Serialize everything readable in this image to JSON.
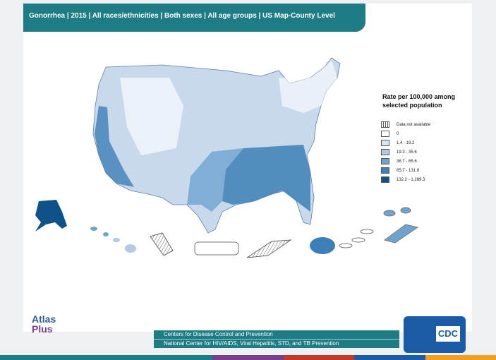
{
  "header": {
    "title": "Gonorrhea | 2015 | All races/ethnicities | Both sexes | All age groups | US Map-County Level"
  },
  "legend": {
    "title": "Rate per 100,000 among selected population",
    "items": [
      {
        "label": "Data not available",
        "color": "hatched"
      },
      {
        "label": "0",
        "color": "#ffffff"
      },
      {
        "label": "1.4 - 19.2",
        "color": "#dbe6f4"
      },
      {
        "label": "19.3 - 35.6",
        "color": "#b3c9e4"
      },
      {
        "label": "36.7 - 65.6",
        "color": "#6fa3cf"
      },
      {
        "label": "65.7 - 131.8",
        "color": "#3d7fb8"
      },
      {
        "label": "132.2 - 1,289.3",
        "color": "#0f5289"
      }
    ]
  },
  "footer": {
    "lines": [
      "Centers for Disease Control and Prevention",
      "National Center for HIV/AIDS, Viral Hepatitis, STD, and TB Prevention"
    ]
  },
  "logos": {
    "atlas": "Atlas",
    "plus": "Plus",
    "cdc": "CDC"
  }
}
